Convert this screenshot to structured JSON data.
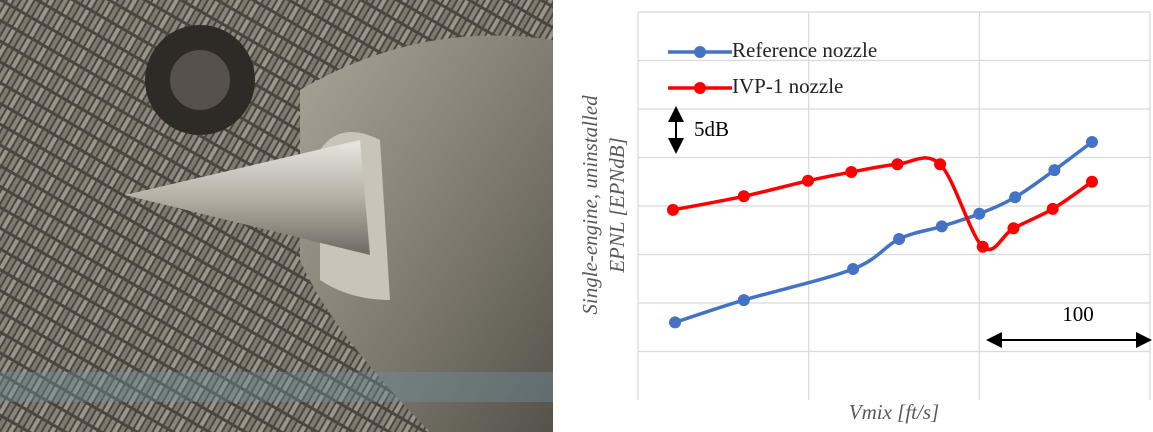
{
  "chart_data": {
    "type": "line",
    "xlabel": "Vmix [ft/s]",
    "ylabel": [
      "Single-engine, uninstalled",
      "EPNL [EPNdB]"
    ],
    "xlim": [
      0,
      300
    ],
    "xticks": [
      0,
      100,
      200,
      300
    ],
    "ylim": [
      0,
      40
    ],
    "yticks": [
      5,
      10,
      15,
      20,
      25,
      30,
      35,
      40
    ],
    "grid": true,
    "legend": "upper left",
    "smooth": true,
    "series": [
      {
        "name": "Reference  nozzle",
        "color": "#4472c4",
        "x": [
          21.7,
          62,
          126,
          153,
          178,
          200,
          221,
          244,
          266
        ],
        "values": [
          8.0,
          10.3,
          13.5,
          16.6,
          17.9,
          19.2,
          20.9,
          23.7,
          26.6
        ]
      },
      {
        "name": "IVP-1 nozzle",
        "color": "#ff0000",
        "x": [
          20.5,
          62,
          99.6,
          125,
          152,
          177,
          202,
          220,
          243,
          266
        ],
        "values": [
          19.6,
          21.0,
          22.6,
          23.5,
          24.3,
          24.3,
          15.8,
          17.7,
          19.7,
          22.5
        ]
      }
    ],
    "annotations": [
      {
        "text": "5dB"
      },
      {
        "text": "100"
      }
    ]
  }
}
